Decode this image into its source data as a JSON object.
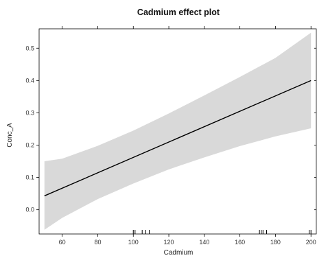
{
  "chart_data": {
    "type": "line",
    "title": "Cadmium effect plot",
    "xlabel": "Cadmium",
    "ylabel": "Conc_A",
    "xlim": [
      47,
      203
    ],
    "ylim": [
      -0.075,
      0.56
    ],
    "x_ticks": [
      60,
      80,
      100,
      120,
      140,
      160,
      180,
      200
    ],
    "y_ticks": [
      0.0,
      0.1,
      0.2,
      0.3,
      0.4,
      0.5
    ],
    "x_tick_labels": [
      "60",
      "80",
      "100",
      "120",
      "140",
      "160",
      "180",
      "200"
    ],
    "y_tick_labels": [
      "0.0",
      "0.1",
      "0.2",
      "0.3",
      "0.4",
      "0.5"
    ],
    "series": [
      {
        "x": [
          50,
          200
        ],
        "y": [
          0.043,
          0.4
        ],
        "color": "#000000"
      }
    ],
    "confidence_band": {
      "x": [
        50,
        60,
        80,
        100,
        120,
        140,
        160,
        180,
        200
      ],
      "lower": [
        -0.062,
        -0.025,
        0.033,
        0.081,
        0.125,
        0.162,
        0.197,
        0.227,
        0.252
      ],
      "upper": [
        0.15,
        0.158,
        0.198,
        0.245,
        0.298,
        0.354,
        0.411,
        0.47,
        0.548
      ],
      "color": "#d9d9d9"
    },
    "rug": [
      100,
      101,
      105,
      107,
      109,
      171,
      172,
      173,
      175,
      199,
      200
    ],
    "grid": false,
    "legend": "none"
  }
}
